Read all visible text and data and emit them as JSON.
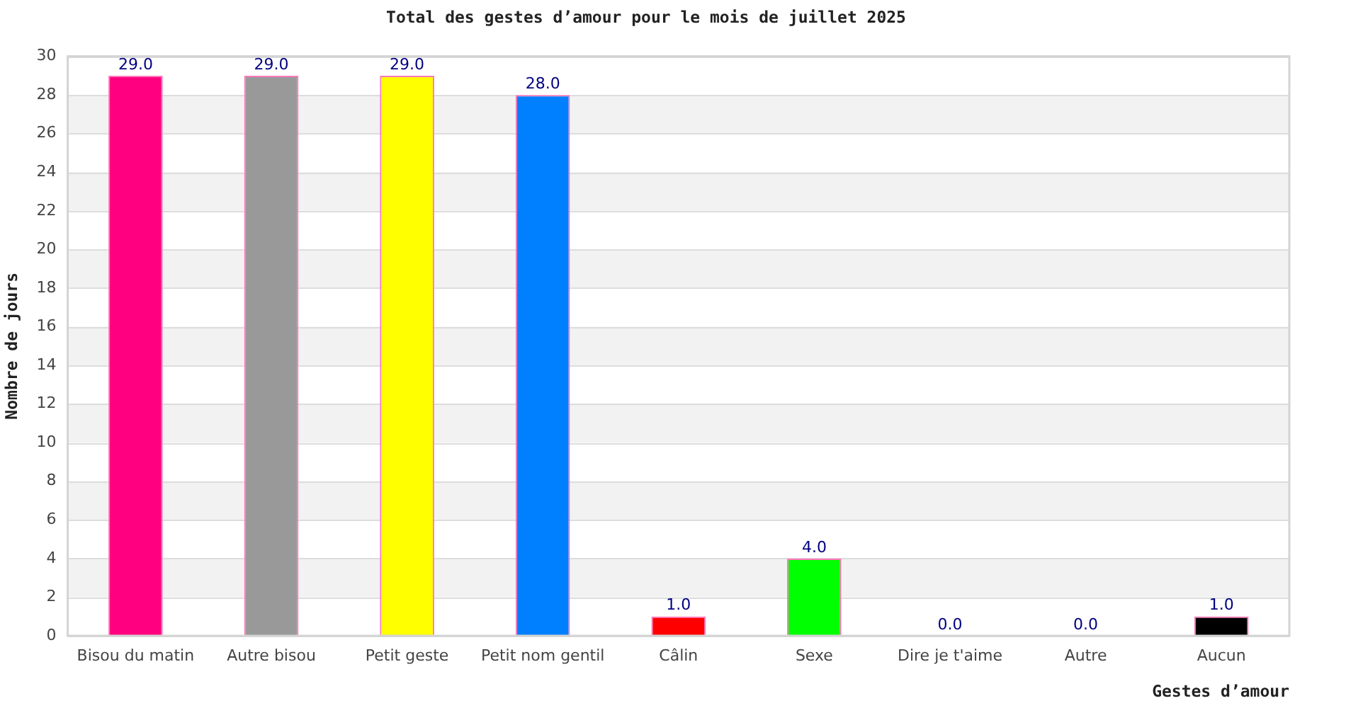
{
  "chart_data": {
    "type": "bar",
    "title": "Total des gestes d’amour pour le mois de juillet 2025",
    "xlabel": "Gestes d’amour",
    "ylabel": "Nombre de jours",
    "categories": [
      "Bisou du matin",
      "Autre bisou",
      "Petit geste",
      "Petit nom gentil",
      "Câlin",
      "Sexe",
      "Dire je t'aime",
      "Autre",
      "Aucun"
    ],
    "values": [
      29,
      29,
      29,
      28,
      1,
      4,
      0,
      0,
      1
    ],
    "colors": [
      "#ff0080",
      "#999999",
      "#ffff00",
      "#0080ff",
      "#ff0000",
      "#00ff00",
      null,
      null,
      "#000000"
    ],
    "value_labels": [
      "29.0",
      "29.0",
      "29.0",
      "28.0",
      "1.0",
      "4.0",
      "0.0",
      "0.0",
      "1.0"
    ],
    "ylim": [
      0,
      30
    ],
    "yticks": [
      0,
      2,
      4,
      6,
      8,
      10,
      12,
      14,
      16,
      18,
      20,
      22,
      24,
      26,
      28,
      30
    ],
    "grid": "y",
    "legend": false
  }
}
